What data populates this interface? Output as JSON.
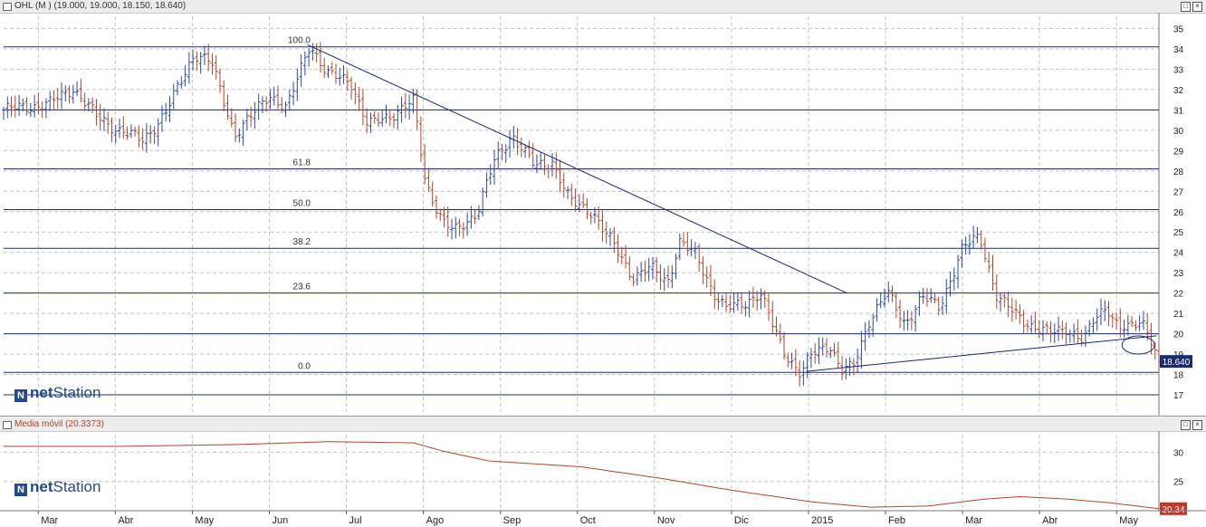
{
  "top_panel": {
    "title": "OHL (M ) (19.000, 19.000, 18.150, 18.640)",
    "price_badge": "18.640",
    "watermark_bold": "net",
    "watermark_rest": "Station",
    "watermark_mark": "N"
  },
  "bottom_panel": {
    "title": "Media móvil (20.3373)",
    "value_badge": "20.34",
    "watermark_bold": "net",
    "watermark_rest": "Station",
    "watermark_mark": "N"
  },
  "colors": {
    "up_bar": "#2b4aa0",
    "down_bar": "#b0462a",
    "lines": "#1c2a6e",
    "moving_average": "#b0462a",
    "badge_top": "#1c2a6e",
    "badge_bottom": "#c0392b"
  },
  "chart_data": [
    {
      "type": "line",
      "subtype": "ohlc_bars",
      "title": "OHL (M ) (19.000, 19.000, 18.150, 18.640)",
      "x_tick_labels": [
        "Mar",
        "Abr",
        "May",
        "Jun",
        "Jul",
        "Ago",
        "Sep",
        "Oct",
        "Nov",
        "Dic",
        "2015",
        "Feb",
        "Mar",
        "Abr",
        "May"
      ],
      "y_ticks": [
        17,
        18,
        19,
        20,
        21,
        22,
        23,
        24,
        25,
        26,
        27,
        28,
        29,
        30,
        31,
        32,
        33,
        34,
        35
      ],
      "ylim": [
        16.2,
        35.6
      ],
      "grid": true,
      "last_close": 18.64,
      "price_path": [
        {
          "t": 0,
          "v": 31.0
        },
        {
          "t": 0.04,
          "v": 31.3
        },
        {
          "t": 0.06,
          "v": 32.1
        },
        {
          "t": 0.08,
          "v": 30.7
        },
        {
          "t": 0.1,
          "v": 30.0
        },
        {
          "t": 0.12,
          "v": 29.5
        },
        {
          "t": 0.14,
          "v": 30.8
        },
        {
          "t": 0.165,
          "v": 33.8
        },
        {
          "t": 0.18,
          "v": 33.3
        },
        {
          "t": 0.2,
          "v": 29.8
        },
        {
          "t": 0.215,
          "v": 30.7
        },
        {
          "t": 0.23,
          "v": 31.8
        },
        {
          "t": 0.245,
          "v": 31.0
        },
        {
          "t": 0.265,
          "v": 34.3
        },
        {
          "t": 0.28,
          "v": 32.7
        },
        {
          "t": 0.3,
          "v": 32.5
        },
        {
          "t": 0.315,
          "v": 30.2
        },
        {
          "t": 0.325,
          "v": 30.5
        },
        {
          "t": 0.34,
          "v": 30.9
        },
        {
          "t": 0.355,
          "v": 31.4
        },
        {
          "t": 0.365,
          "v": 27.5
        },
        {
          "t": 0.38,
          "v": 25.5
        },
        {
          "t": 0.39,
          "v": 25.0
        },
        {
          "t": 0.41,
          "v": 26.0
        },
        {
          "t": 0.425,
          "v": 28.5
        },
        {
          "t": 0.44,
          "v": 29.8
        },
        {
          "t": 0.46,
          "v": 28.2
        },
        {
          "t": 0.475,
          "v": 28.5
        },
        {
          "t": 0.49,
          "v": 26.5
        },
        {
          "t": 0.51,
          "v": 26.0
        },
        {
          "t": 0.52,
          "v": 25.0
        },
        {
          "t": 0.53,
          "v": 24.2
        },
        {
          "t": 0.545,
          "v": 22.8
        },
        {
          "t": 0.56,
          "v": 23.2
        },
        {
          "t": 0.575,
          "v": 22.6
        },
        {
          "t": 0.585,
          "v": 24.5
        },
        {
          "t": 0.6,
          "v": 23.8
        },
        {
          "t": 0.615,
          "v": 22.0
        },
        {
          "t": 0.625,
          "v": 21.2
        },
        {
          "t": 0.64,
          "v": 21.5
        },
        {
          "t": 0.655,
          "v": 22.0
        },
        {
          "t": 0.665,
          "v": 20.5
        },
        {
          "t": 0.675,
          "v": 19.2
        },
        {
          "t": 0.69,
          "v": 18.0
        },
        {
          "t": 0.7,
          "v": 19.0
        },
        {
          "t": 0.715,
          "v": 19.5
        },
        {
          "t": 0.725,
          "v": 18.2
        },
        {
          "t": 0.735,
          "v": 18.3
        },
        {
          "t": 0.75,
          "v": 20.8
        },
        {
          "t": 0.765,
          "v": 22.0
        },
        {
          "t": 0.78,
          "v": 20.5
        },
        {
          "t": 0.795,
          "v": 21.8
        },
        {
          "t": 0.81,
          "v": 21.3
        },
        {
          "t": 0.83,
          "v": 24.2
        },
        {
          "t": 0.845,
          "v": 24.8
        },
        {
          "t": 0.86,
          "v": 21.8
        },
        {
          "t": 0.875,
          "v": 21.0
        },
        {
          "t": 0.89,
          "v": 20.4
        },
        {
          "t": 0.905,
          "v": 20.0
        },
        {
          "t": 0.92,
          "v": 20.3
        },
        {
          "t": 0.935,
          "v": 19.6
        },
        {
          "t": 0.945,
          "v": 20.8
        },
        {
          "t": 0.955,
          "v": 21.4
        },
        {
          "t": 0.965,
          "v": 20.3
        },
        {
          "t": 0.975,
          "v": 20.2
        },
        {
          "t": 0.985,
          "v": 20.7
        },
        {
          "t": 0.992,
          "v": 20.0
        },
        {
          "t": 1.0,
          "v": 18.64
        }
      ],
      "fibonacci_levels": [
        {
          "label": "100.0",
          "value": 34.1
        },
        {
          "label": "",
          "value": 31.0
        },
        {
          "label": "61.8",
          "value": 28.1
        },
        {
          "label": "50.0",
          "value": 26.1
        },
        {
          "label": "38.2",
          "value": 24.2
        },
        {
          "label": "23.6",
          "value": 22.0
        },
        {
          "label": "",
          "value": 20.0
        },
        {
          "label": "0.0",
          "value": 18.1
        },
        {
          "label": "",
          "value": 17.0
        }
      ],
      "trendlines": [
        {
          "from": {
            "t": 0.263,
            "v": 34.2
          },
          "to": {
            "t": 0.73,
            "v": 22.0
          }
        },
        {
          "from": {
            "t": 0.695,
            "v": 18.15
          },
          "to": {
            "t": 0.998,
            "v": 19.9
          }
        }
      ],
      "annotations": [
        {
          "type": "ellipse",
          "t": 0.99,
          "v": 19.45
        }
      ]
    },
    {
      "type": "line",
      "title": "Media móvil (20.3373)",
      "x_tick_labels": [
        "Mar",
        "Abr",
        "May",
        "Jun",
        "Jul",
        "Ago",
        "Sep",
        "Oct",
        "Nov",
        "Dic",
        "2015",
        "Feb",
        "Mar",
        "Abr",
        "May"
      ],
      "y_ticks": [
        25,
        30
      ],
      "ylim": [
        20.0,
        33.0
      ],
      "grid": true,
      "last_value": 20.34,
      "series": [
        {
          "values_path": [
            {
              "t": 0,
              "v": 31.0
            },
            {
              "t": 0.1,
              "v": 31.0
            },
            {
              "t": 0.2,
              "v": 31.3
            },
            {
              "t": 0.28,
              "v": 31.8
            },
            {
              "t": 0.355,
              "v": 31.6
            },
            {
              "t": 0.38,
              "v": 30.2
            },
            {
              "t": 0.42,
              "v": 28.5
            },
            {
              "t": 0.5,
              "v": 27.5
            },
            {
              "t": 0.57,
              "v": 25.5
            },
            {
              "t": 0.63,
              "v": 23.5
            },
            {
              "t": 0.7,
              "v": 21.5
            },
            {
              "t": 0.75,
              "v": 20.6
            },
            {
              "t": 0.8,
              "v": 20.8
            },
            {
              "t": 0.85,
              "v": 22.0
            },
            {
              "t": 0.88,
              "v": 22.4
            },
            {
              "t": 0.92,
              "v": 22.0
            },
            {
              "t": 0.96,
              "v": 21.3
            },
            {
              "t": 1.0,
              "v": 20.34
            }
          ]
        }
      ]
    }
  ]
}
